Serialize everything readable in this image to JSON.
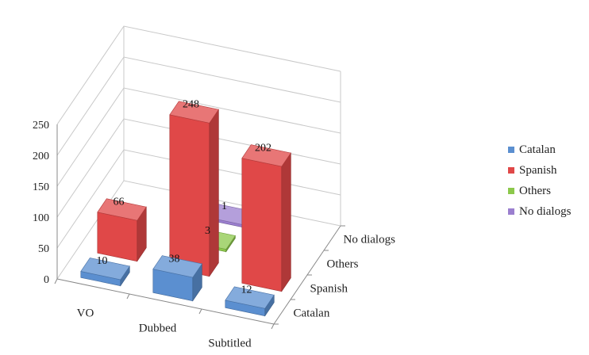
{
  "chart_data": {
    "type": "bar",
    "variant": "3d-column",
    "categories": [
      "VO",
      "Dubbed",
      "Subtitled"
    ],
    "series": [
      {
        "name": "Catalan",
        "color": "#5b8fd0",
        "values": [
          10,
          38,
          12
        ]
      },
      {
        "name": "Spanish",
        "color": "#e04848",
        "values": [
          66,
          248,
          202
        ]
      },
      {
        "name": "Others",
        "color": "#8cc84b",
        "values": [
          0,
          3,
          0
        ]
      },
      {
        "name": "No dialogs",
        "color": "#9b7fcf",
        "values": [
          0,
          1,
          0
        ]
      }
    ],
    "data_labels": [
      {
        "series": "Catalan",
        "category": "VO",
        "text": "10"
      },
      {
        "series": "Catalan",
        "category": "Dubbed",
        "text": "38"
      },
      {
        "series": "Catalan",
        "category": "Subtitled",
        "text": "12"
      },
      {
        "series": "Spanish",
        "category": "VO",
        "text": "66"
      },
      {
        "series": "Spanish",
        "category": "Dubbed",
        "text": "248"
      },
      {
        "series": "Spanish",
        "category": "Subtitled",
        "text": "202"
      },
      {
        "series": "Others",
        "category": "Dubbed",
        "text": "3"
      },
      {
        "series": "No dialogs",
        "category": "Dubbed",
        "text": "1"
      }
    ],
    "yticks": [
      0,
      50,
      100,
      150,
      200,
      250
    ],
    "ylim": [
      0,
      250
    ],
    "grid": true,
    "legend": "right"
  }
}
